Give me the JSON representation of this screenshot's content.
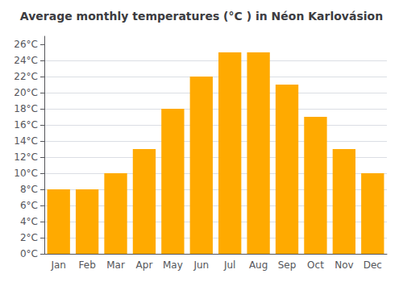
{
  "chart_data": {
    "type": "bar",
    "title": "Average monthly temperatures (°C ) in Néon Karlovásion",
    "categories": [
      "Jan",
      "Feb",
      "Mar",
      "Apr",
      "May",
      "Jun",
      "Jul",
      "Aug",
      "Sep",
      "Oct",
      "Nov",
      "Dec"
    ],
    "values": [
      8,
      8,
      10,
      13,
      18,
      22,
      25,
      25,
      21,
      17,
      13,
      10
    ],
    "color": "#FFAA00",
    "ylim": [
      0,
      27
    ],
    "yticks": [
      {
        "value": 0,
        "label": "0°C"
      },
      {
        "value": 2,
        "label": "2°C"
      },
      {
        "value": 4,
        "label": "4°C"
      },
      {
        "value": 6,
        "label": "6°C"
      },
      {
        "value": 8,
        "label": "8°C"
      },
      {
        "value": 10,
        "label": "10°C"
      },
      {
        "value": 12,
        "label": "12°C"
      },
      {
        "value": 14,
        "label": "14°C"
      },
      {
        "value": 16,
        "label": "16°C"
      },
      {
        "value": 18,
        "label": "18°C"
      },
      {
        "value": 20,
        "label": "20°C"
      },
      {
        "value": 22,
        "label": "22°C"
      },
      {
        "value": 24,
        "label": "24°C"
      },
      {
        "value": 26,
        "label": "26°C"
      }
    ],
    "grid": true
  }
}
